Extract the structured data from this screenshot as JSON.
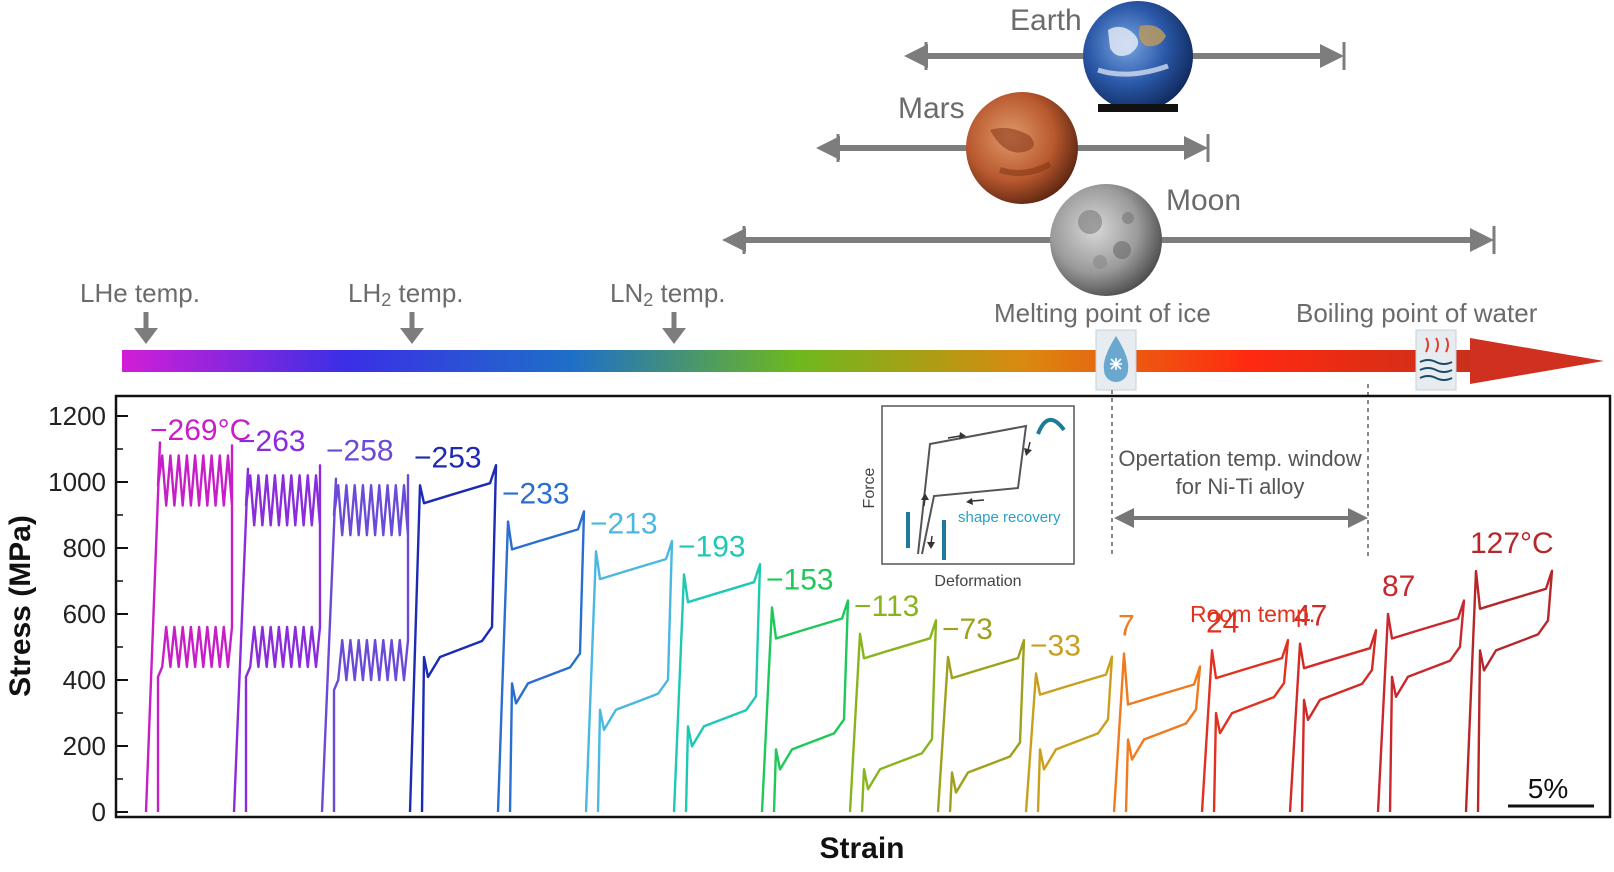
{
  "chart_data": {
    "type": "line",
    "title": "",
    "xlabel": "Strain",
    "ylabel": "Stress (MPa)",
    "ylim": [
      0,
      1200
    ],
    "yticks": [
      0,
      200,
      400,
      600,
      800,
      1000,
      1200
    ],
    "scale_bar": "5%",
    "legend": "none",
    "grid": false,
    "temperature_axis": {
      "markers": [
        {
          "label_main": "LHe temp.",
          "label_sub": ""
        },
        {
          "label_main": "LH",
          "label_sub": "2",
          "label_tail": " temp."
        },
        {
          "label_main": "LN",
          "label_sub": "2",
          "label_tail": " temp."
        }
      ],
      "melting_label": "Melting point of ice",
      "boiling_label": "Boiling point of water",
      "window_label_1": "Opertation temp. window",
      "window_label_2": "for Ni-Ti alloy",
      "bodies": [
        {
          "name": "Earth"
        },
        {
          "name": "Mars"
        },
        {
          "name": "Moon"
        }
      ],
      "gradient_colors": [
        "#d21ed6",
        "#3a2fe6",
        "#1e6fc8",
        "#6eb81e",
        "#d98a10",
        "#ff2a10",
        "#c8301a"
      ]
    },
    "room_temp_label": "Room temp.",
    "inset": {
      "xlabel": "Deformation",
      "ylabel": "Force",
      "annotation": "shape recovery"
    },
    "series": [
      {
        "name": "−269°C",
        "color": "#c81ec8",
        "upper": 1050,
        "lower": 470,
        "peak": 1120,
        "mode": "serrated"
      },
      {
        "name": "−263",
        "color": "#8a2bdc",
        "upper": 990,
        "lower": 470,
        "peak": 1040,
        "mode": "serrated"
      },
      {
        "name": "−258",
        "color": "#6a4ad6",
        "upper": 960,
        "lower": 430,
        "peak": 1010,
        "mode": "serrated"
      },
      {
        "name": "−253",
        "color": "#1c2ab4",
        "upper": 960,
        "lower": 500,
        "peak": 990,
        "mode": "loop"
      },
      {
        "name": "−233",
        "color": "#2a6ed0",
        "upper": 820,
        "lower": 420,
        "peak": 880,
        "mode": "loop"
      },
      {
        "name": "−213",
        "color": "#4ab8e0",
        "upper": 730,
        "lower": 340,
        "peak": 790,
        "mode": "loop"
      },
      {
        "name": "−193",
        "color": "#1ec8b4",
        "upper": 660,
        "lower": 290,
        "peak": 720,
        "mode": "loop"
      },
      {
        "name": "−153",
        "color": "#1ec85a",
        "upper": 550,
        "lower": 220,
        "peak": 620,
        "mode": "loop"
      },
      {
        "name": "−113",
        "color": "#8ab41e",
        "upper": 490,
        "lower": 160,
        "peak": 540,
        "mode": "loop"
      },
      {
        "name": "−73",
        "color": "#9ea01e",
        "upper": 430,
        "lower": 150,
        "peak": 470,
        "mode": "loop"
      },
      {
        "name": "−33",
        "color": "#c8a01e",
        "upper": 380,
        "lower": 220,
        "peak": 420,
        "mode": "loop"
      },
      {
        "name": "7",
        "color": "#f07a1e",
        "upper": 350,
        "lower": 250,
        "peak": 480,
        "mode": "loop"
      },
      {
        "name": "24",
        "color": "#e0321e",
        "upper": 430,
        "lower": 330,
        "peak": 490,
        "mode": "loop"
      },
      {
        "name": "47",
        "color": "#d22a28",
        "upper": 460,
        "lower": 370,
        "peak": 510,
        "mode": "loop"
      },
      {
        "name": "87",
        "color": "#c8282e",
        "upper": 550,
        "lower": 440,
        "peak": 600,
        "mode": "loop"
      },
      {
        "name": "127°C",
        "color": "#b4282a",
        "upper": 640,
        "lower": 520,
        "peak": 730,
        "mode": "loop"
      }
    ]
  }
}
